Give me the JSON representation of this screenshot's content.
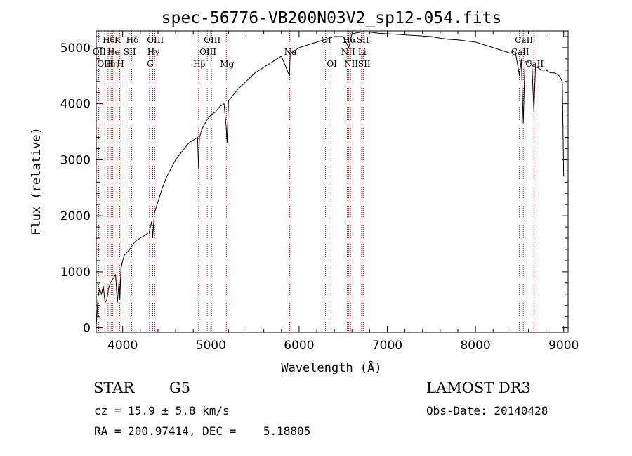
{
  "chart_data": {
    "type": "line",
    "title": "spec-56776-VB200N03V2_sp12-054.fits",
    "xlabel": "Wavelength (Å)",
    "ylabel": "Flux (relative)",
    "xlim": [
      3700,
      9050
    ],
    "ylim": [
      -80,
      5300
    ],
    "x_ticks": [
      4000,
      5000,
      6000,
      7000,
      8000,
      9000
    ],
    "y_ticks": [
      0,
      1000,
      2000,
      3000,
      4000,
      5000
    ],
    "grid": false,
    "line_color": "#000000",
    "marker_color": "#cc0000",
    "series": [
      {
        "x": [
          3700,
          3720,
          3740,
          3760,
          3780,
          3800,
          3820,
          3840,
          3860,
          3880,
          3900,
          3920,
          3940,
          3960,
          3968,
          3980,
          4000,
          4020,
          4050,
          4080,
          4100,
          4120,
          4150,
          4200,
          4250,
          4300,
          4330,
          4340,
          4360,
          4400,
          4450,
          4500,
          4550,
          4600,
          4650,
          4700,
          4750,
          4800,
          4850,
          4861,
          4870,
          4900,
          4950,
          5000,
          5050,
          5100,
          5150,
          5175,
          5183,
          5200,
          5250,
          5300,
          5400,
          5500,
          5600,
          5700,
          5800,
          5890,
          5900,
          6000,
          6100,
          6200,
          6300,
          6400,
          6500,
          6563,
          6600,
          6700,
          6800,
          6900,
          7000,
          7100,
          7200,
          7300,
          7400,
          7500,
          7600,
          7700,
          7800,
          7900,
          8000,
          8100,
          8200,
          8300,
          8400,
          8450,
          8498,
          8520,
          8542,
          8560,
          8600,
          8640,
          8662,
          8680,
          8700,
          8750,
          8800,
          8850,
          8900,
          8950,
          8985,
          9000
        ],
        "y": [
          20,
          550,
          700,
          600,
          750,
          450,
          500,
          700,
          800,
          850,
          900,
          950,
          450,
          850,
          500,
          1050,
          1200,
          1300,
          1350,
          1400,
          1450,
          1500,
          1550,
          1600,
          1650,
          1700,
          1900,
          1600,
          2050,
          2250,
          2500,
          2700,
          2850,
          3000,
          3100,
          3200,
          3300,
          3350,
          3400,
          2850,
          3400,
          3550,
          3700,
          3800,
          3850,
          3950,
          4000,
          3550,
          3300,
          4050,
          4150,
          4250,
          4400,
          4550,
          4650,
          4750,
          4850,
          4500,
          4900,
          5000,
          5050,
          5100,
          5150,
          5200,
          5200,
          5000,
          5250,
          5280,
          5280,
          5260,
          5250,
          5240,
          5230,
          5220,
          5210,
          5200,
          5170,
          5150,
          5140,
          5120,
          5100,
          5050,
          5000,
          4950,
          4900,
          4950,
          4500,
          4800,
          3650,
          4750,
          4750,
          4700,
          3850,
          4650,
          4650,
          4600,
          4600,
          4550,
          4550,
          4500,
          4400,
          2700
        ]
      }
    ],
    "spectral_lines": [
      {
        "wavelength": 3727,
        "label": "OII",
        "row": 1
      },
      {
        "wavelength": 3798,
        "label": "OIII",
        "row": 2
      },
      {
        "wavelength": 3835,
        "label": "Hθ",
        "row": 0
      },
      {
        "wavelength": 3869,
        "label": "Hη",
        "row": 2
      },
      {
        "wavelength": 3889,
        "label": "He",
        "row": 1
      },
      {
        "wavelength": 3934,
        "label": "K",
        "row": 0
      },
      {
        "wavelength": 3968,
        "label": "H",
        "row": 2
      },
      {
        "wavelength": 4072,
        "label": "SII",
        "row": 1
      },
      {
        "wavelength": 4102,
        "label": "Hδ",
        "row": 0
      },
      {
        "wavelength": 4304,
        "label": "G",
        "row": 2
      },
      {
        "wavelength": 4341,
        "label": "Hγ",
        "row": 1
      },
      {
        "wavelength": 4363,
        "label": "OIII",
        "row": 0
      },
      {
        "wavelength": 4861,
        "label": "Hβ",
        "row": 2
      },
      {
        "wavelength": 4959,
        "label": "OIII",
        "row": 1
      },
      {
        "wavelength": 5007,
        "label": "OIII",
        "row": 0
      },
      {
        "wavelength": 5175,
        "label": "Mg",
        "row": 2
      },
      {
        "wavelength": 5894,
        "label": "Na",
        "row": 1
      },
      {
        "wavelength": 6300,
        "label": "OI",
        "row": 0
      },
      {
        "wavelength": 6364,
        "label": "OI",
        "row": 2
      },
      {
        "wavelength": 6548,
        "label": "NII",
        "row": 1
      },
      {
        "wavelength": 6563,
        "label": "Hα",
        "row": 0
      },
      {
        "wavelength": 6583,
        "label": "NII",
        "row": 2
      },
      {
        "wavelength": 6708,
        "label": "Li",
        "row": 1
      },
      {
        "wavelength": 6716,
        "label": "SII",
        "row": 0
      },
      {
        "wavelength": 6731,
        "label": "SII",
        "row": 2
      },
      {
        "wavelength": 8498,
        "label": "CaII",
        "row": 1
      },
      {
        "wavelength": 8542,
        "label": "CaII",
        "row": 0
      },
      {
        "wavelength": 8662,
        "label": "CaII",
        "row": 2
      }
    ]
  },
  "info": {
    "object_class": "STAR",
    "subclass": "G5",
    "survey": "LAMOST DR3",
    "cz": "cz = 15.9 ± 5.8 km/s",
    "obs_date": "Obs-Date: 20140428",
    "coords": "RA = 200.97414, DEC =    5.18805"
  }
}
